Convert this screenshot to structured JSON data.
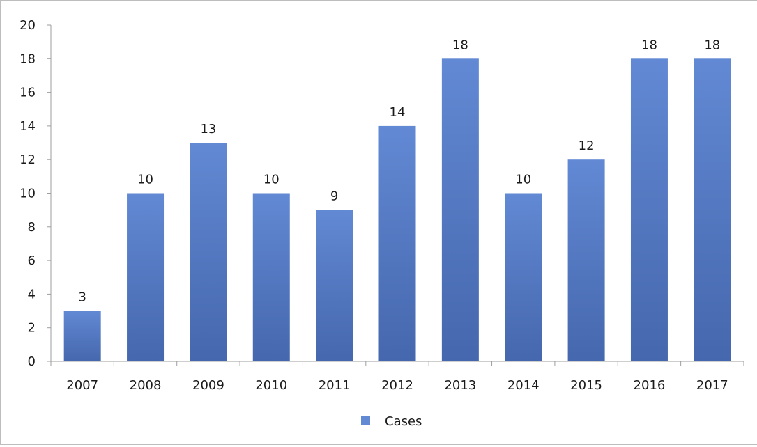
{
  "chart_data": {
    "type": "bar",
    "categories": [
      "2007",
      "2008",
      "2009",
      "2010",
      "2011",
      "2012",
      "2013",
      "2014",
      "2015",
      "2016",
      "2017"
    ],
    "series": [
      {
        "name": "Cases",
        "values": [
          3,
          10,
          13,
          10,
          9,
          14,
          18,
          10,
          12,
          18,
          18
        ]
      }
    ],
    "ylim": [
      0,
      20
    ],
    "yticks": [
      0,
      2,
      4,
      6,
      8,
      10,
      12,
      14,
      16,
      18,
      20
    ],
    "grid": false,
    "legend": "bottom-center",
    "data_labels": true,
    "colors": {
      "bar_light": "#6289d4",
      "bar_dark": "#4567ad",
      "axis": "#9e9e9e"
    }
  }
}
